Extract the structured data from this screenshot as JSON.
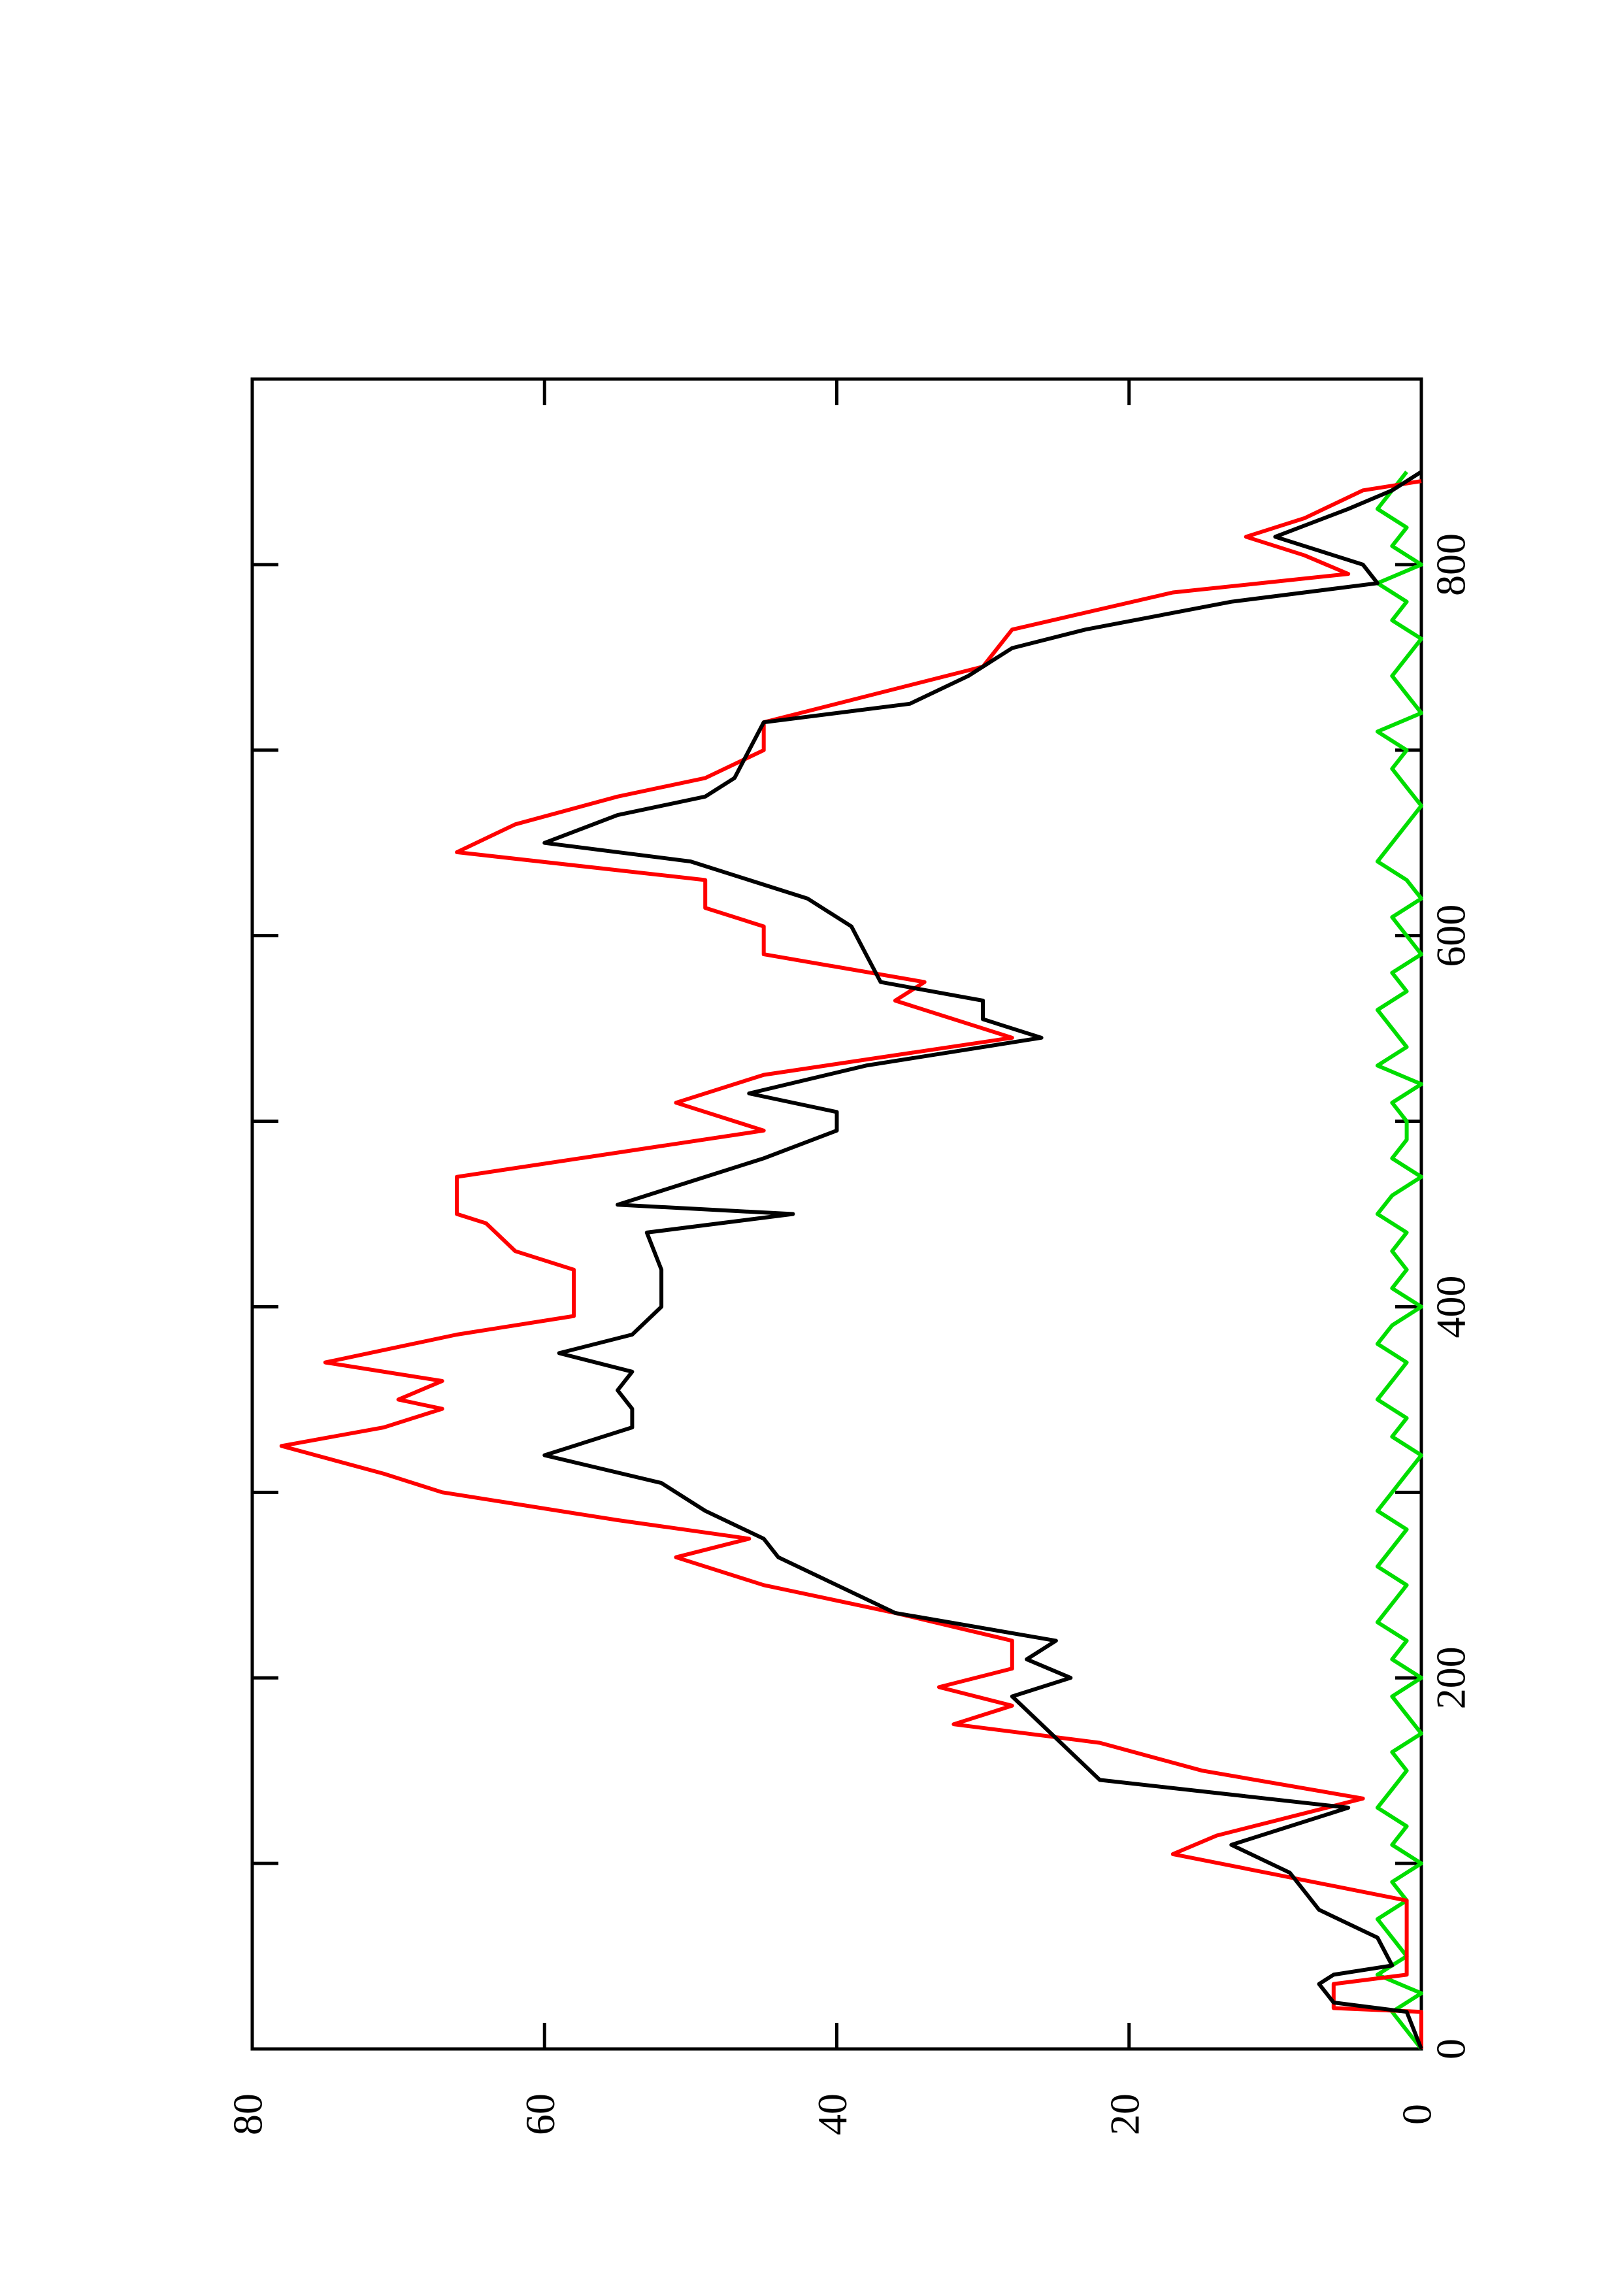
{
  "chart_data": {
    "type": "line",
    "xlim": [
      0,
      900
    ],
    "ylim": [
      0,
      80
    ],
    "xticks": [
      0,
      200,
      400,
      600,
      800
    ],
    "xminorticks": [
      100,
      300,
      500,
      700,
      900
    ],
    "yticks": [
      0,
      20,
      40,
      60,
      80
    ],
    "orientation": "rotated",
    "series": [
      {
        "color": "#000000",
        "x": [
          0,
          20,
          25,
          35,
          40,
          45,
          60,
          75,
          95,
          110,
          130,
          145,
          160,
          175,
          190,
          200,
          210,
          220,
          235,
          250,
          265,
          275,
          290,
          305,
          320,
          335,
          345,
          355,
          365,
          375,
          385,
          400,
          420,
          440,
          450,
          455,
          465,
          480,
          495,
          505,
          515,
          530,
          545,
          555,
          565,
          575,
          590,
          605,
          620,
          640,
          650,
          665,
          675,
          685,
          700,
          715,
          725,
          740,
          755,
          765,
          780,
          790,
          800,
          815,
          830,
          840,
          850
        ],
        "values": [
          0,
          1,
          6,
          7,
          6,
          2,
          3,
          7,
          9,
          13,
          5,
          22,
          24,
          26,
          28,
          24,
          27,
          25,
          36,
          40,
          44,
          45,
          49,
          52,
          60,
          54,
          54,
          55,
          54,
          59,
          54,
          52,
          52,
          53,
          43,
          55,
          51,
          45,
          40,
          40,
          46,
          38,
          26,
          30,
          30,
          37,
          38,
          39,
          42,
          50,
          60,
          55,
          49,
          47,
          46,
          45,
          35,
          31,
          28,
          23,
          13,
          3,
          4,
          10,
          5,
          2,
          0
        ]
      },
      {
        "color": "#ff0000",
        "x": [
          0,
          20,
          22,
          35,
          40,
          80,
          105,
          115,
          135,
          150,
          165,
          175,
          185,
          195,
          205,
          220,
          235,
          250,
          265,
          275,
          285,
          300,
          310,
          325,
          335,
          345,
          350,
          360,
          370,
          385,
          395,
          420,
          430,
          445,
          450,
          470,
          495,
          510,
          525,
          545,
          565,
          575,
          590,
          605,
          615,
          630,
          645,
          660,
          675,
          685,
          700,
          715,
          745,
          765,
          785,
          795,
          805,
          815,
          825,
          840,
          845
        ],
        "values": [
          0,
          0,
          6,
          6,
          1,
          1,
          17,
          14,
          4,
          15,
          22,
          32,
          28,
          33,
          28,
          28,
          36,
          45,
          51,
          46,
          55,
          67,
          71,
          78,
          71,
          67,
          70,
          67,
          75,
          66,
          58,
          58,
          62,
          64,
          66,
          66,
          45,
          51,
          45,
          28,
          36,
          34,
          45,
          45,
          49,
          49,
          66,
          62,
          55,
          49,
          45,
          45,
          30,
          28,
          17,
          5,
          8,
          12,
          8,
          4,
          0
        ]
      },
      {
        "color": "#00dd00",
        "x": [
          0,
          10,
          20,
          30,
          40,
          50,
          60,
          70,
          80,
          90,
          100,
          110,
          120,
          130,
          140,
          150,
          160,
          170,
          180,
          190,
          200,
          210,
          220,
          230,
          240,
          250,
          260,
          270,
          280,
          290,
          300,
          310,
          320,
          330,
          340,
          350,
          360,
          370,
          380,
          390,
          400,
          410,
          420,
          430,
          440,
          450,
          460,
          470,
          480,
          490,
          500,
          510,
          520,
          530,
          540,
          550,
          560,
          570,
          580,
          590,
          600,
          610,
          620,
          630,
          640,
          650,
          660,
          670,
          680,
          690,
          700,
          710,
          720,
          730,
          740,
          750,
          760,
          770,
          780,
          790,
          800,
          810,
          820,
          830,
          840,
          850
        ],
        "values": [
          0,
          1,
          2,
          0,
          3,
          1,
          2,
          3,
          1,
          2,
          0,
          2,
          1,
          3,
          2,
          1,
          2,
          0,
          1,
          2,
          0,
          2,
          1,
          3,
          2,
          1,
          3,
          2,
          1,
          3,
          2,
          1,
          0,
          2,
          1,
          3,
          2,
          1,
          3,
          2,
          0,
          2,
          1,
          2,
          1,
          3,
          2,
          0,
          2,
          1,
          1,
          2,
          0,
          3,
          1,
          2,
          3,
          1,
          2,
          0,
          1,
          2,
          0,
          1,
          3,
          2,
          1,
          0,
          1,
          2,
          1,
          3,
          0,
          1,
          2,
          1,
          0,
          2,
          1,
          3,
          0,
          2,
          1,
          3,
          2,
          1
        ]
      }
    ]
  }
}
